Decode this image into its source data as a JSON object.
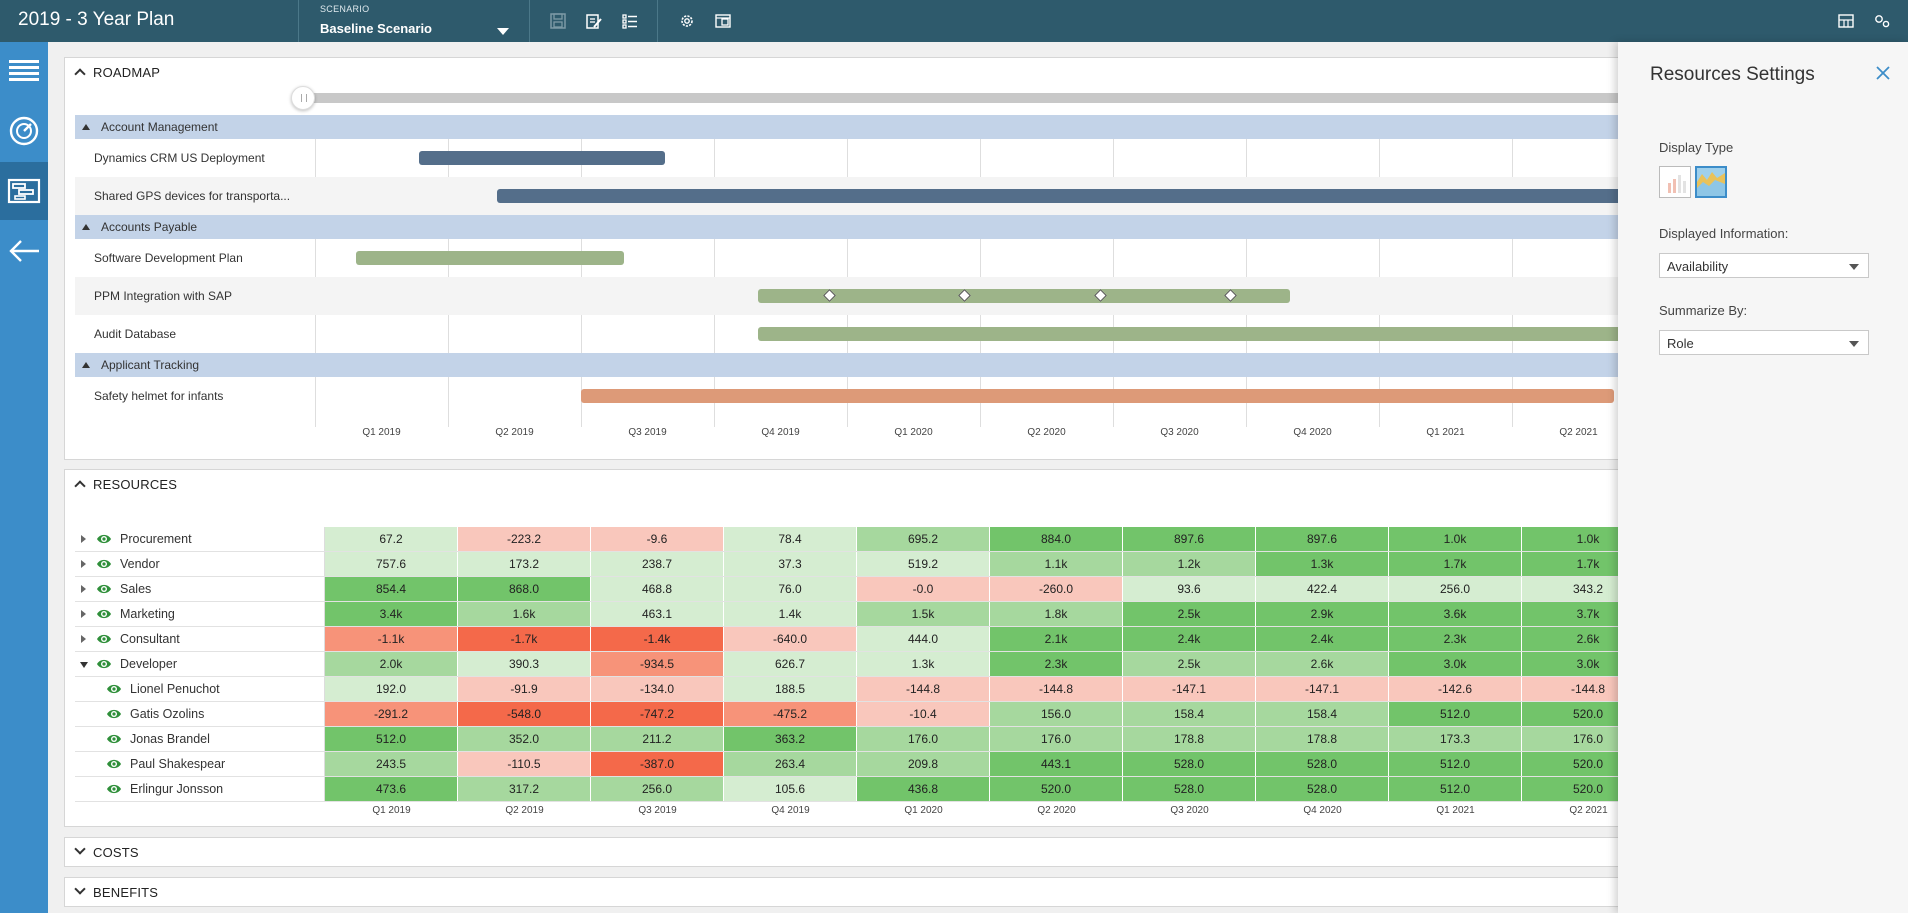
{
  "app": {
    "title": "2019 - 3 Year Plan"
  },
  "scenario": {
    "label": "SCENARIO",
    "value": "Baseline Scenario"
  },
  "toolbar_icons": [
    "save-icon",
    "edit-icon",
    "list-icon",
    "gear-icon",
    "library-icon",
    "layout-icon",
    "settings-icon"
  ],
  "nav": [
    "menu-icon",
    "dashboard-icon",
    "roadmap-icon",
    "back-arrow-icon"
  ],
  "roadmap": {
    "title": "ROADMAP",
    "quarters": [
      "Q1 2019",
      "Q2 2019",
      "Q3 2019",
      "Q4 2019",
      "Q1 2020",
      "Q2 2020",
      "Q3 2020",
      "Q4 2020",
      "Q1 2021",
      "Q2 2021"
    ],
    "groups": [
      {
        "name": "Account Management",
        "tasks": [
          {
            "name": "Dynamics CRM US Deployment",
            "color": "blue",
            "start": 0.78,
            "end": 2.63,
            "milestones": []
          },
          {
            "name": "Shared GPS devices for transporta...",
            "color": "blue",
            "start": 1.37,
            "end": 10.0,
            "milestones": []
          }
        ]
      },
      {
        "name": "Accounts Payable",
        "tasks": [
          {
            "name": "Software Development Plan",
            "color": "green",
            "start": 0.31,
            "end": 2.32,
            "milestones": []
          },
          {
            "name": "PPM Integration with SAP",
            "color": "green",
            "start": 3.33,
            "end": 7.33,
            "milestones": [
              3.87,
              4.89,
              5.91,
              6.89
            ]
          },
          {
            "name": "Audit Database",
            "color": "green",
            "start": 3.33,
            "end": 10.0,
            "milestones": []
          }
        ]
      },
      {
        "name": "Applicant Tracking",
        "tasks": [
          {
            "name": "Safety helmet for infants",
            "color": "orange",
            "start": 2.0,
            "end": 9.77,
            "milestones": []
          }
        ]
      }
    ]
  },
  "resources": {
    "title": "RESOURCES",
    "quarters": [
      "Q1 2019",
      "Q2 2019",
      "Q3 2019",
      "Q4 2019",
      "Q1 2020",
      "Q2 2020",
      "Q3 2020",
      "Q4 2020",
      "Q1 2021",
      "Q2 2021"
    ],
    "rows": [
      {
        "name": "Procurement",
        "level": 0,
        "expanded": false,
        "values": [
          "67.2",
          "-223.2",
          "-9.6",
          "78.4",
          "695.2",
          "884.0",
          "897.6",
          "897.6",
          "1.0k",
          "1.0k"
        ],
        "shades": [
          "g1",
          "r1",
          "r1",
          "g1",
          "g2",
          "g3",
          "g3",
          "g3",
          "g3",
          "g3"
        ]
      },
      {
        "name": "Vendor",
        "level": 0,
        "expanded": false,
        "values": [
          "757.6",
          "173.2",
          "238.7",
          "37.3",
          "519.2",
          "1.1k",
          "1.2k",
          "1.3k",
          "1.7k",
          "1.7k"
        ],
        "shades": [
          "g1",
          "g1",
          "g1",
          "g1",
          "g1",
          "g2",
          "g2",
          "g3",
          "g3",
          "g3"
        ]
      },
      {
        "name": "Sales",
        "level": 0,
        "expanded": false,
        "values": [
          "854.4",
          "868.0",
          "468.8",
          "76.0",
          "-0.0",
          "-260.0",
          "93.6",
          "422.4",
          "256.0",
          "343.2"
        ],
        "shades": [
          "g3",
          "g3",
          "g1",
          "g1",
          "r1",
          "r1",
          "g1",
          "g1",
          "g1",
          "g1"
        ]
      },
      {
        "name": "Marketing",
        "level": 0,
        "expanded": false,
        "values": [
          "3.4k",
          "1.6k",
          "463.1",
          "1.4k",
          "1.5k",
          "1.8k",
          "2.5k",
          "2.9k",
          "3.6k",
          "3.7k"
        ],
        "shades": [
          "g3",
          "g2",
          "g1",
          "g1",
          "g2",
          "g2",
          "g3",
          "g3",
          "g3",
          "g3"
        ]
      },
      {
        "name": "Consultant",
        "level": 0,
        "expanded": false,
        "values": [
          "-1.1k",
          "-1.7k",
          "-1.4k",
          "-640.0",
          "444.0",
          "2.1k",
          "2.4k",
          "2.4k",
          "2.3k",
          "2.6k"
        ],
        "shades": [
          "r2",
          "r3",
          "r3",
          "r1",
          "g1",
          "g3",
          "g3",
          "g3",
          "g3",
          "g3"
        ]
      },
      {
        "name": "Developer",
        "level": 0,
        "expanded": true,
        "values": [
          "2.0k",
          "390.3",
          "-934.5",
          "626.7",
          "1.3k",
          "2.3k",
          "2.5k",
          "2.6k",
          "3.0k",
          "3.0k"
        ],
        "shades": [
          "g2",
          "g1",
          "r2",
          "g1",
          "g1",
          "g3",
          "g2",
          "g2",
          "g3",
          "g3"
        ]
      },
      {
        "name": "Lionel Penuchot",
        "level": 1,
        "expanded": false,
        "values": [
          "192.0",
          "-91.9",
          "-134.0",
          "188.5",
          "-144.8",
          "-144.8",
          "-147.1",
          "-147.1",
          "-142.6",
          "-144.8"
        ],
        "shades": [
          "g1",
          "r1",
          "r1",
          "g1",
          "r1",
          "r1",
          "r1",
          "r1",
          "r1",
          "r1"
        ]
      },
      {
        "name": "Gatis Ozolins",
        "level": 1,
        "expanded": false,
        "values": [
          "-291.2",
          "-548.0",
          "-747.2",
          "-475.2",
          "-10.4",
          "156.0",
          "158.4",
          "158.4",
          "512.0",
          "520.0"
        ],
        "shades": [
          "r2",
          "r3",
          "r3",
          "r2",
          "r1",
          "g2",
          "g2",
          "g2",
          "g3",
          "g3"
        ]
      },
      {
        "name": "Jonas Brandel",
        "level": 1,
        "expanded": false,
        "values": [
          "512.0",
          "352.0",
          "211.2",
          "363.2",
          "176.0",
          "176.0",
          "178.8",
          "178.8",
          "173.3",
          "176.0"
        ],
        "shades": [
          "g3",
          "g2",
          "g2",
          "g3",
          "g2",
          "g2",
          "g2",
          "g2",
          "g2",
          "g2"
        ]
      },
      {
        "name": "Paul Shakespear",
        "level": 1,
        "expanded": false,
        "values": [
          "243.5",
          "-110.5",
          "-387.0",
          "263.4",
          "209.8",
          "443.1",
          "528.0",
          "528.0",
          "512.0",
          "520.0"
        ],
        "shades": [
          "g2",
          "r1",
          "r3",
          "g2",
          "g2",
          "g3",
          "g3",
          "g3",
          "g3",
          "g3"
        ]
      },
      {
        "name": "Erlingur Jonsson",
        "level": 1,
        "expanded": false,
        "values": [
          "473.6",
          "317.2",
          "256.0",
          "105.6",
          "436.8",
          "520.0",
          "528.0",
          "528.0",
          "512.0",
          "520.0"
        ],
        "shades": [
          "g3",
          "g2",
          "g2",
          "g1",
          "g3",
          "g3",
          "g3",
          "g3",
          "g3",
          "g3"
        ]
      }
    ]
  },
  "costs": {
    "title": "COSTS"
  },
  "benefits": {
    "title": "BENEFITS"
  },
  "settings": {
    "title": "Resources Settings",
    "display_type_label": "Display Type",
    "displayed_info_label": "Displayed Information:",
    "displayed_info_value": "Availability",
    "summarize_label": "Summarize By:",
    "summarize_value": "Role"
  },
  "colors": {
    "topbar": "#2e5a6c",
    "leftnav": "#3c8dc9",
    "g1": "#d5edd1",
    "g2": "#a6d89e",
    "g3": "#72c46a",
    "r1": "#f9c7bc",
    "r2": "#f79379",
    "r3": "#f4694a"
  }
}
